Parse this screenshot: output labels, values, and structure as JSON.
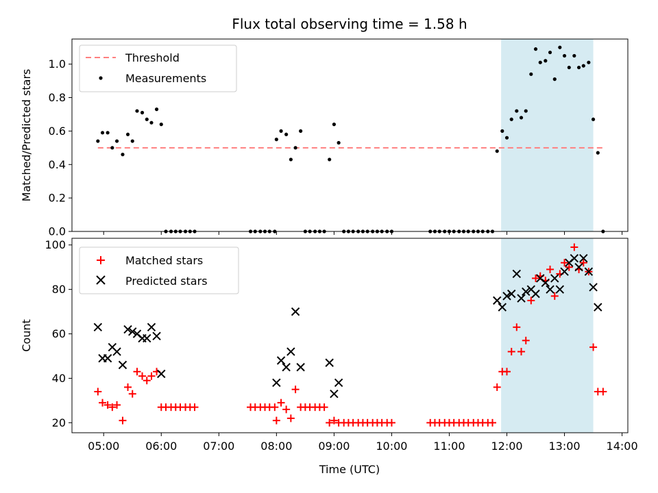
{
  "chart_data": {
    "type": "scatter",
    "title": "Flux total observing time = 1.58 h",
    "xlabel": "Time (UTC)",
    "x_unit": "hours UTC",
    "xlim": [
      4.45,
      14.1
    ],
    "x_ticks": [
      {
        "value": 5,
        "label": "05:00"
      },
      {
        "value": 6,
        "label": "06:00"
      },
      {
        "value": 7,
        "label": "07:00"
      },
      {
        "value": 8,
        "label": "08:00"
      },
      {
        "value": 9,
        "label": "09:00"
      },
      {
        "value": 10,
        "label": "10:00"
      },
      {
        "value": 11,
        "label": "11:00"
      },
      {
        "value": 12,
        "label": "12:00"
      },
      {
        "value": 13,
        "label": "13:00"
      },
      {
        "value": 14,
        "label": "14:00"
      }
    ],
    "highlight": {
      "x_start": 11.9,
      "x_end": 13.5,
      "color": "#add8e6"
    },
    "panels": [
      {
        "ylabel": "Matched/Predicted stars",
        "ylim": [
          0,
          1.15
        ],
        "y_ticks": [
          {
            "value": 0,
            "label": "0.0"
          },
          {
            "value": 0.2,
            "label": "0.2"
          },
          {
            "value": 0.4,
            "label": "0.4"
          },
          {
            "value": 0.6,
            "label": "0.6"
          },
          {
            "value": 0.8,
            "label": "0.8"
          },
          {
            "value": 1.0,
            "label": "1.0"
          }
        ],
        "legend": {
          "placement": "top-left",
          "entries": [
            "Threshold",
            "Measurements"
          ]
        },
        "series": [
          {
            "name": "Threshold",
            "style": "dashed-line",
            "color": "#ff7f7f",
            "x": [
              4.9,
              13.68
            ],
            "y": [
              0.5,
              0.5
            ]
          },
          {
            "name": "Measurements",
            "style": "dot",
            "color": "#000000",
            "x": [
              4.9,
              4.98,
              5.07,
              5.15,
              5.23,
              5.33,
              5.42,
              5.5,
              5.58,
              5.67,
              5.75,
              5.83,
              5.92,
              6.0,
              6.08,
              6.17,
              6.25,
              6.33,
              6.42,
              6.5,
              6.58,
              7.55,
              7.63,
              7.72,
              7.8,
              7.88,
              7.97,
              8.0,
              8.08,
              8.17,
              8.25,
              8.33,
              8.42,
              8.5,
              8.58,
              8.67,
              8.75,
              8.83,
              8.92,
              9.0,
              9.08,
              9.17,
              9.25,
              9.33,
              9.42,
              9.5,
              9.58,
              9.67,
              9.75,
              9.83,
              9.92,
              10.0,
              10.67,
              10.75,
              10.83,
              10.92,
              11.0,
              11.08,
              11.17,
              11.25,
              11.33,
              11.42,
              11.5,
              11.58,
              11.67,
              11.75,
              11.83,
              11.92,
              12.0,
              12.08,
              12.17,
              12.25,
              12.33,
              12.42,
              12.5,
              12.58,
              12.67,
              12.75,
              12.83,
              12.92,
              13.0,
              13.08,
              13.17,
              13.25,
              13.33,
              13.42,
              13.5,
              13.58,
              13.67
            ],
            "y": [
              0.54,
              0.59,
              0.59,
              0.5,
              0.54,
              0.46,
              0.58,
              0.54,
              0.72,
              0.71,
              0.67,
              0.65,
              0.73,
              0.64,
              0,
              0,
              0,
              0,
              0,
              0,
              0,
              0,
              0,
              0,
              0,
              0,
              0,
              0.55,
              0.6,
              0.58,
              0.43,
              0.5,
              0.6,
              0,
              0,
              0,
              0,
              0,
              0.43,
              0.64,
              0.53,
              0,
              0,
              0,
              0,
              0,
              0,
              0,
              0,
              0,
              0,
              0,
              0,
              0,
              0,
              0,
              0,
              0,
              0,
              0,
              0,
              0,
              0,
              0,
              0,
              0,
              0.48,
              0.6,
              0.56,
              0.67,
              0.72,
              0.68,
              0.72,
              0.94,
              1.09,
              1.01,
              1.02,
              1.07,
              0.91,
              1.1,
              1.05,
              0.98,
              1.05,
              0.98,
              0.99,
              1.01,
              0.67,
              0.47,
              0
            ]
          }
        ]
      },
      {
        "ylabel": "Count",
        "ylim": [
          15.5,
          103
        ],
        "y_ticks": [
          {
            "value": 20,
            "label": "20"
          },
          {
            "value": 40,
            "label": "40"
          },
          {
            "value": 60,
            "label": "60"
          },
          {
            "value": 80,
            "label": "80"
          },
          {
            "value": 100,
            "label": "100"
          }
        ],
        "legend": {
          "placement": "top-left",
          "entries": [
            "Matched stars",
            "Predicted stars"
          ]
        },
        "series": [
          {
            "name": "Matched stars",
            "style": "plus",
            "color": "#ff0000",
            "x": [
              4.9,
              4.98,
              5.07,
              5.15,
              5.23,
              5.33,
              5.42,
              5.5,
              5.58,
              5.67,
              5.75,
              5.83,
              5.92,
              6.0,
              6.08,
              6.17,
              6.25,
              6.33,
              6.42,
              6.5,
              6.58,
              7.55,
              7.63,
              7.72,
              7.8,
              7.88,
              7.97,
              8.0,
              8.08,
              8.17,
              8.25,
              8.33,
              8.42,
              8.5,
              8.58,
              8.67,
              8.75,
              8.83,
              8.92,
              9.0,
              9.08,
              9.17,
              9.25,
              9.33,
              9.42,
              9.5,
              9.58,
              9.67,
              9.75,
              9.83,
              9.92,
              10.0,
              10.67,
              10.75,
              10.83,
              10.92,
              11.0,
              11.08,
              11.17,
              11.25,
              11.33,
              11.42,
              11.5,
              11.58,
              11.67,
              11.75,
              11.83,
              11.92,
              12.0,
              12.08,
              12.17,
              12.25,
              12.33,
              12.42,
              12.5,
              12.58,
              12.67,
              12.75,
              12.83,
              12.92,
              13.0,
              13.08,
              13.17,
              13.25,
              13.33,
              13.42,
              13.5,
              13.58,
              13.67
            ],
            "y": [
              34,
              29,
              28,
              27,
              28,
              21,
              36,
              33,
              43,
              41,
              39,
              41,
              43,
              27,
              27,
              27,
              27,
              27,
              27,
              27,
              27,
              27,
              27,
              27,
              27,
              27,
              27,
              21,
              29,
              26,
              22,
              35,
              27,
              27,
              27,
              27,
              27,
              27,
              20,
              21,
              20,
              20,
              20,
              20,
              20,
              20,
              20,
              20,
              20,
              20,
              20,
              20,
              20,
              20,
              20,
              20,
              20,
              20,
              20,
              20,
              20,
              20,
              20,
              20,
              20,
              20,
              36,
              43,
              43,
              52,
              63,
              52,
              57,
              75,
              85,
              86,
              84,
              89,
              77,
              87,
              92,
              90,
              99,
              89,
              92,
              88,
              54,
              34,
              34
            ]
          },
          {
            "name": "Predicted stars",
            "style": "x",
            "color": "#000000",
            "x": [
              4.9,
              4.98,
              5.07,
              5.15,
              5.23,
              5.33,
              5.42,
              5.5,
              5.58,
              5.67,
              5.75,
              5.83,
              5.92,
              6.0,
              8.0,
              8.08,
              8.17,
              8.25,
              8.33,
              8.42,
              8.92,
              9.0,
              9.08,
              11.83,
              11.92,
              12.0,
              12.08,
              12.17,
              12.25,
              12.33,
              12.42,
              12.5,
              12.58,
              12.67,
              12.75,
              12.83,
              12.92,
              13.0,
              13.08,
              13.17,
              13.25,
              13.33,
              13.42,
              13.5,
              13.58
            ],
            "y": [
              63,
              49,
              49,
              54,
              52,
              46,
              62,
              61,
              60,
              58,
              58,
              63,
              59,
              42,
              38,
              48,
              45,
              52,
              70,
              45,
              47,
              33,
              38,
              75,
              72,
              77,
              78,
              87,
              76,
              79,
              80,
              78,
              85,
              83,
              80,
              85,
              80,
              88,
              92,
              94,
              90,
              94,
              88,
              81,
              72
            ]
          }
        ]
      }
    ]
  }
}
